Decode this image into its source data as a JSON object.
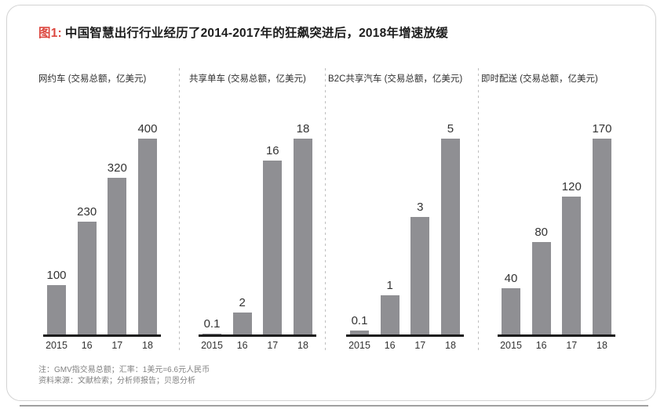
{
  "figure": {
    "label": "图1:",
    "title": "中国智慧出行行业经历了2014-2017年的狂飙突进后，2018年增速放缓"
  },
  "chart_data": [
    {
      "type": "bar",
      "title": "网约车 (交易总额，亿美元)",
      "categories": [
        "2015",
        "16",
        "17",
        "18"
      ],
      "values": [
        100,
        230,
        320,
        400
      ],
      "value_labels": [
        "100",
        "230",
        "320",
        "400"
      ],
      "ylim": [
        0,
        400
      ],
      "bar_color": "#8f8f93",
      "grid": false,
      "legend": false
    },
    {
      "type": "bar",
      "title": "共享单车 (交易总额，亿美元)",
      "categories": [
        "2015",
        "16",
        "17",
        "18"
      ],
      "values": [
        0.1,
        2,
        16,
        18
      ],
      "value_labels": [
        "0.1",
        "2",
        "16",
        "18"
      ],
      "ylim": [
        0,
        18
      ],
      "bar_color": "#8f8f93",
      "grid": false,
      "legend": false
    },
    {
      "type": "bar",
      "title": "B2C共享汽车 (交易总额，亿美元)",
      "categories": [
        "2015",
        "16",
        "17",
        "18"
      ],
      "values": [
        0.1,
        1,
        3,
        5
      ],
      "value_labels": [
        "0.1",
        "1",
        "3",
        "5"
      ],
      "ylim": [
        0,
        5
      ],
      "bar_color": "#8f8f93",
      "grid": false,
      "legend": false
    },
    {
      "type": "bar",
      "title": "即时配送 (交易总额，亿美元)",
      "categories": [
        "2015",
        "16",
        "17",
        "18"
      ],
      "values": [
        40,
        80,
        120,
        170
      ],
      "value_labels": [
        "40",
        "80",
        "120",
        "170"
      ],
      "ylim": [
        0,
        170
      ],
      "bar_color": "#8f8f93",
      "grid": false,
      "legend": false
    }
  ],
  "notes": {
    "line1": "注：GMV指交易总额；汇率：1美元=6.6元人民币",
    "line2": "资料来源：文献检索；分析师报告；贝恩分析"
  },
  "colors": {
    "bar": "#8f8f93",
    "accent_red": "#dc4840",
    "baseline": "#1c1c1c",
    "card_border": "#d3d3d3"
  }
}
